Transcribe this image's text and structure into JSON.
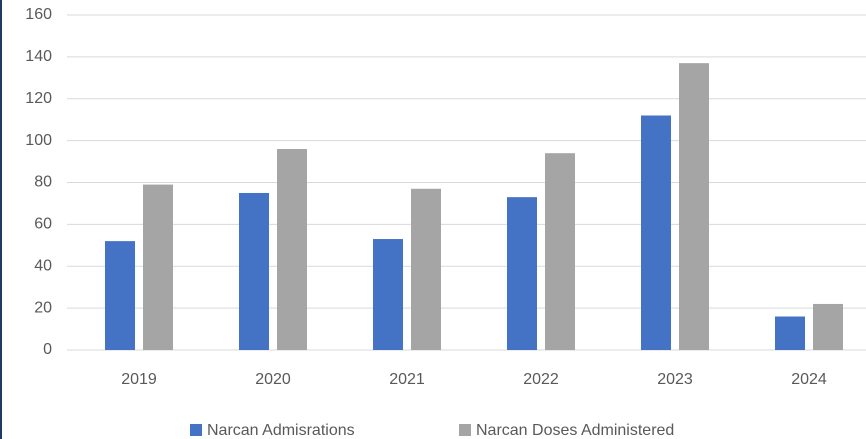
{
  "chart_data": {
    "type": "bar",
    "categories": [
      "2019",
      "2020",
      "2021",
      "2022",
      "2023",
      "2024"
    ],
    "series": [
      {
        "name": "Narcan Admisrations",
        "color": "#4472c4",
        "values": [
          52,
          75,
          53,
          73,
          112,
          16
        ]
      },
      {
        "name": "Narcan Doses Administered",
        "color": "#a5a5a5",
        "values": [
          79,
          96,
          77,
          94,
          137,
          22
        ]
      }
    ],
    "ylim": [
      0,
      160
    ],
    "yticks": [
      0,
      20,
      40,
      60,
      80,
      100,
      120,
      140,
      160
    ],
    "grid": true,
    "legend": "bottom"
  }
}
